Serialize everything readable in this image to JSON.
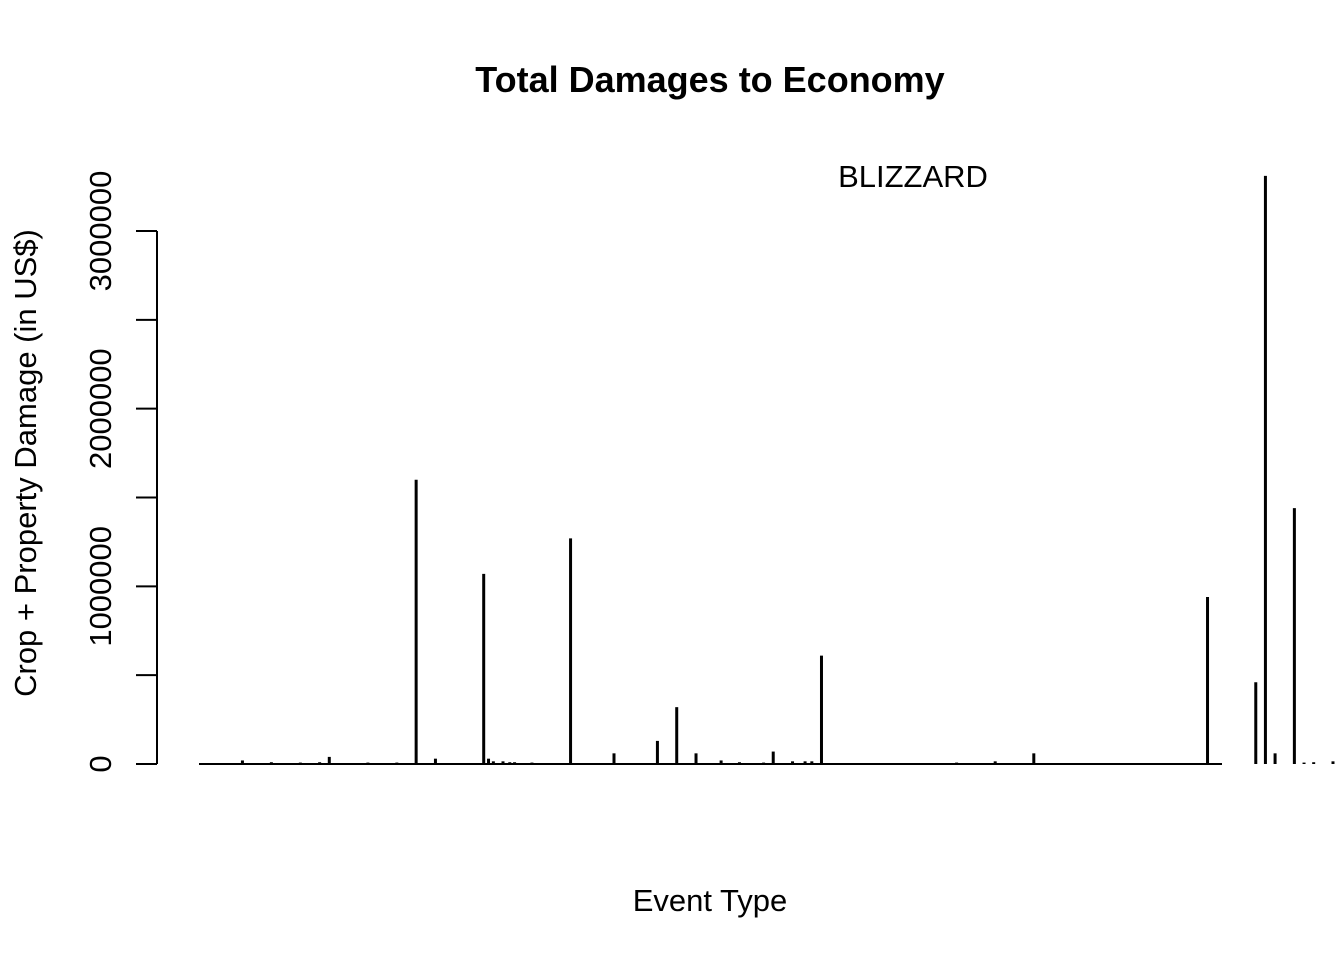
{
  "chart_data": {
    "type": "bar",
    "title": "Total Damages to Economy",
    "xlabel": "Event Type",
    "ylabel": "Crop + Property Damage (in US$)",
    "ylim": [
      0,
      3330000
    ],
    "yticks": [
      0,
      500000,
      1000000,
      1500000,
      2000000,
      2500000,
      3000000
    ],
    "ytick_labels": [
      "0",
      "",
      "1000000",
      "",
      "2000000",
      "",
      "3000000"
    ],
    "grid": false,
    "annotation": {
      "text": "BLIZZARD",
      "x_index": 71,
      "y": 3300000
    },
    "n_events": 106,
    "x": [
      4,
      7,
      10,
      12,
      13,
      17,
      20,
      22,
      24,
      29,
      29.5,
      30,
      31,
      31.7,
      32.2,
      34,
      38,
      42.5,
      47,
      49,
      51,
      53.6,
      55.5,
      58,
      59,
      61,
      62.3,
      63,
      64,
      65,
      67,
      72,
      78,
      82,
      86,
      92.5,
      92.8,
      93,
      93.5,
      95,
      101,
      104,
      109,
      110,
      111,
      113,
      114,
      115,
      117,
      119,
      120.5,
      121,
      122,
      123,
      124,
      125,
      128,
      129,
      130,
      131
    ],
    "values": [
      20000,
      10000,
      8000,
      10000,
      40000,
      8000,
      8000,
      1600000,
      30000,
      1070000,
      30000,
      15000,
      15000,
      10000,
      10000,
      8000,
      1270000,
      60000,
      130000,
      320000,
      60000,
      20000,
      10000,
      8000,
      70000,
      15000,
      15000,
      15000,
      610000,
      5000,
      5000,
      5000,
      8000,
      15000,
      60000,
      5000,
      5000,
      5000,
      5000,
      5000,
      5000,
      940000,
      460000,
      3310000,
      60000,
      1440000,
      8000,
      10000,
      15000,
      30000,
      8000,
      20000,
      50000,
      90000,
      10000,
      30000,
      8000,
      8000,
      140000,
      10000
    ]
  }
}
